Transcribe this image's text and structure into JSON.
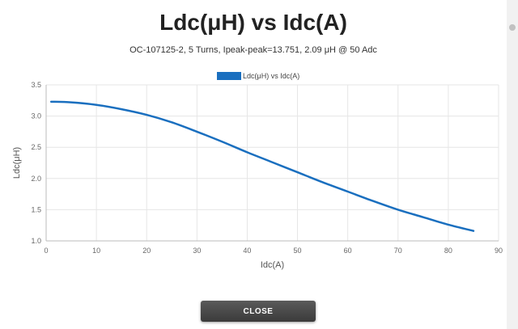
{
  "dialog": {
    "title": "Ldc(μH) vs Idc(A)",
    "subtitle": "OC-107125-2, 5 Turns, Ipeak-peak=13.751, 2.09 μH @ 50 Adc",
    "close_label": "CLOSE"
  },
  "colors": {
    "series": "#1a6fbf",
    "grid": "#e6e6e6",
    "axis_text": "#666666"
  },
  "chart_data": {
    "type": "line",
    "title": "Ldc(μH) vs Idc(A)",
    "xlabel": "Idc(A)",
    "ylabel": "Ldc(μH)",
    "xlim": [
      0,
      90
    ],
    "ylim": [
      1.0,
      3.5
    ],
    "xticks": [
      0,
      10,
      20,
      30,
      40,
      50,
      60,
      70,
      80,
      90
    ],
    "yticks": [
      1.0,
      1.5,
      2.0,
      2.5,
      3.0,
      3.5
    ],
    "grid": true,
    "legend_position": "top-center",
    "series": [
      {
        "name": "Ldc(μH) vs Idc(A)",
        "x": [
          1,
          5,
          10,
          15,
          20,
          25,
          30,
          35,
          40,
          45,
          50,
          55,
          60,
          65,
          70,
          75,
          80,
          85
        ],
        "y": [
          3.23,
          3.22,
          3.18,
          3.11,
          3.02,
          2.9,
          2.75,
          2.59,
          2.42,
          2.26,
          2.1,
          1.94,
          1.79,
          1.64,
          1.5,
          1.38,
          1.26,
          1.16
        ]
      }
    ]
  }
}
